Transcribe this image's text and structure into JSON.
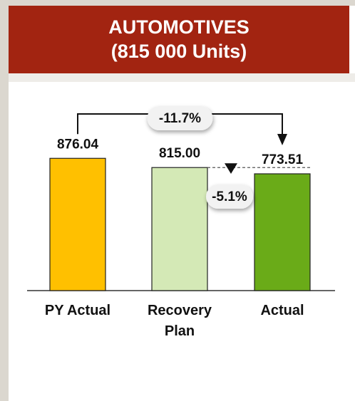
{
  "chart_data": {
    "type": "bar",
    "title": "AUTOMOTIVES",
    "subtitle": "(815 000 Units)",
    "categories": [
      "PY Actual",
      "Recovery Plan",
      "Actual"
    ],
    "values": [
      876.04,
      815.0,
      773.51
    ],
    "value_labels": [
      "876.04",
      "815.00",
      "773.51"
    ],
    "colors": [
      "#ffc000",
      "#d4e9b6",
      "#6aab18"
    ],
    "ylim": [
      0,
      1000
    ],
    "annotations": [
      {
        "text": "-11.7%",
        "from": 0,
        "to": 2
      },
      {
        "text": "-5.1%",
        "from": 1,
        "to": 2
      }
    ]
  }
}
